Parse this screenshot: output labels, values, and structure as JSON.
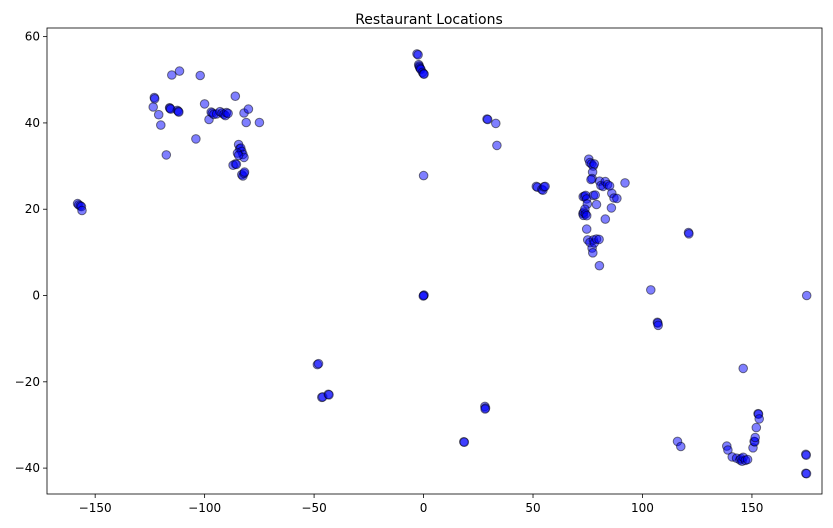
{
  "chart_data": {
    "type": "scatter",
    "title": "Restaurant Locations",
    "xlabel": "",
    "ylabel": "",
    "xlim": [
      -172,
      182
    ],
    "ylim": [
      -46,
      62
    ],
    "xticks": [
      -150,
      -100,
      -50,
      0,
      50,
      100,
      150
    ],
    "yticks": [
      -40,
      -20,
      0,
      20,
      40,
      60
    ],
    "grid": false,
    "point_color": "#0000ff",
    "edge_color": "#000000",
    "alpha": 0.5,
    "points": [
      [
        -158,
        21.3
      ],
      [
        -157.5,
        21
      ],
      [
        -156.8,
        20.8
      ],
      [
        -156.3,
        20.6
      ],
      [
        -156,
        19.7
      ],
      [
        -123,
        45.9
      ],
      [
        -122.8,
        45.6
      ],
      [
        -123.5,
        43.7
      ],
      [
        -121,
        41.9
      ],
      [
        -120,
        39.5
      ],
      [
        -117.5,
        32.6
      ],
      [
        -116,
        43.5
      ],
      [
        -115.8,
        43.4
      ],
      [
        -115.5,
        43.2
      ],
      [
        -112.5,
        42.9
      ],
      [
        -112,
        42.7
      ],
      [
        -111.8,
        42.5
      ],
      [
        -115,
        51.1
      ],
      [
        -111.5,
        52
      ],
      [
        -102,
        51
      ],
      [
        -100,
        44.4
      ],
      [
        -98,
        40.8
      ],
      [
        -104,
        36.3
      ],
      [
        -97,
        42.5
      ],
      [
        -96.5,
        42.3
      ],
      [
        -95.8,
        42
      ],
      [
        -94.5,
        42.1
      ],
      [
        -93,
        42.6
      ],
      [
        -92,
        42.3
      ],
      [
        -91.2,
        42
      ],
      [
        -90.5,
        41.7
      ],
      [
        -90,
        42.4
      ],
      [
        -89.3,
        42.2
      ],
      [
        -86,
        46.2
      ],
      [
        -84.5,
        35
      ],
      [
        -84,
        34
      ],
      [
        -83.5,
        34.2
      ],
      [
        -83,
        33.4
      ],
      [
        -82.5,
        32.7
      ],
      [
        -82,
        32
      ],
      [
        -85,
        33
      ],
      [
        -84.5,
        32.5
      ],
      [
        -86,
        30.5
      ],
      [
        -87,
        30.2
      ],
      [
        -85.5,
        30.4
      ],
      [
        -83,
        28
      ],
      [
        -82.5,
        27.7
      ],
      [
        -82,
        28.3
      ],
      [
        -81.8,
        28.6
      ],
      [
        -82,
        42.3
      ],
      [
        -80,
        43.2
      ],
      [
        -81,
        40.1
      ],
      [
        -75,
        40.1
      ],
      [
        -48.5,
        -16
      ],
      [
        -48,
        -15.8
      ],
      [
        -46.5,
        -23.6
      ],
      [
        -46,
        -23.5
      ],
      [
        -43.5,
        -22.9
      ],
      [
        -43.2,
        -23
      ],
      [
        -3,
        56
      ],
      [
        -2.5,
        55.8
      ],
      [
        -2.2,
        53.5
      ],
      [
        -2,
        53.2
      ],
      [
        -1.8,
        52.9
      ],
      [
        -1.5,
        52.6
      ],
      [
        -1.2,
        52.4
      ],
      [
        -0.5,
        51.7
      ],
      [
        0,
        51.4
      ],
      [
        0.2,
        51.3
      ],
      [
        0,
        27.8
      ],
      [
        0,
        0
      ],
      [
        0.2,
        0.1
      ],
      [
        -0.1,
        -0.1
      ],
      [
        18.4,
        -33.9
      ],
      [
        18.6,
        -34
      ],
      [
        28,
        -25.7
      ],
      [
        28.3,
        -26.1
      ],
      [
        28.1,
        -26.3
      ],
      [
        29,
        40.9
      ],
      [
        29.3,
        40.8
      ],
      [
        33,
        39.9
      ],
      [
        33.5,
        34.8
      ],
      [
        51.5,
        25.3
      ],
      [
        52,
        25.1
      ],
      [
        54,
        24.6
      ],
      [
        54.5,
        24.4
      ],
      [
        55,
        25.2
      ],
      [
        55.5,
        25.3
      ],
      [
        72.8,
        19
      ],
      [
        73,
        18.6
      ],
      [
        73.2,
        19.3
      ],
      [
        72.9,
        22.9
      ],
      [
        73.5,
        23
      ],
      [
        74,
        23.2
      ],
      [
        74.5,
        22.4
      ],
      [
        74.8,
        21.2
      ],
      [
        73.7,
        20
      ],
      [
        74,
        18.9
      ],
      [
        74.5,
        18.5
      ],
      [
        75.5,
        31.6
      ],
      [
        76,
        30.8
      ],
      [
        76.7,
        30.5
      ],
      [
        77.5,
        30
      ],
      [
        78,
        30.5
      ],
      [
        77.2,
        28.6
      ],
      [
        77,
        27.1
      ],
      [
        76.5,
        26.9
      ],
      [
        77.6,
        23.2
      ],
      [
        78.4,
        23.3
      ],
      [
        79,
        21.1
      ],
      [
        80.4,
        26.5
      ],
      [
        81,
        25.5
      ],
      [
        82,
        25.3
      ],
      [
        83,
        26.4
      ],
      [
        84,
        25.7
      ],
      [
        85,
        25.4
      ],
      [
        86,
        23.7
      ],
      [
        87,
        22.6
      ],
      [
        88.3,
        22.5
      ],
      [
        92,
        26.1
      ],
      [
        74.5,
        15.4
      ],
      [
        75,
        12.9
      ],
      [
        76,
        12.3
      ],
      [
        77,
        11
      ],
      [
        77.3,
        9.9
      ],
      [
        77.6,
        12.9
      ],
      [
        78,
        12.2
      ],
      [
        79,
        13.1
      ],
      [
        80.2,
        13
      ],
      [
        80.3,
        6.9
      ],
      [
        83,
        17.7
      ],
      [
        85.8,
        20.3
      ],
      [
        103.8,
        1.3
      ],
      [
        106.8,
        -6.2
      ],
      [
        107,
        -6.4
      ],
      [
        107.2,
        -6.9
      ],
      [
        121,
        14.6
      ],
      [
        121.2,
        14.3
      ],
      [
        138.5,
        -34.9
      ],
      [
        139,
        -35.8
      ],
      [
        141,
        -37.4
      ],
      [
        143,
        -37.7
      ],
      [
        144.5,
        -38.1
      ],
      [
        145,
        -37.8
      ],
      [
        145.5,
        -38.4
      ],
      [
        146,
        -37.5
      ],
      [
        147,
        -38.2
      ],
      [
        148,
        -38
      ],
      [
        146,
        -16.9
      ],
      [
        150.5,
        -35.3
      ],
      [
        151,
        -33.8
      ],
      [
        151.3,
        -33.9
      ],
      [
        151.5,
        -32.9
      ],
      [
        152,
        -30.6
      ],
      [
        152.8,
        -27.4
      ],
      [
        153,
        -27.5
      ],
      [
        153.3,
        -28.6
      ],
      [
        116,
        -33.8
      ],
      [
        117.5,
        -35
      ],
      [
        174.6,
        -36.8
      ],
      [
        174.8,
        -37
      ],
      [
        174.6,
        -41.2
      ],
      [
        174.9,
        -41.3
      ],
      [
        175,
        0
      ]
    ]
  }
}
